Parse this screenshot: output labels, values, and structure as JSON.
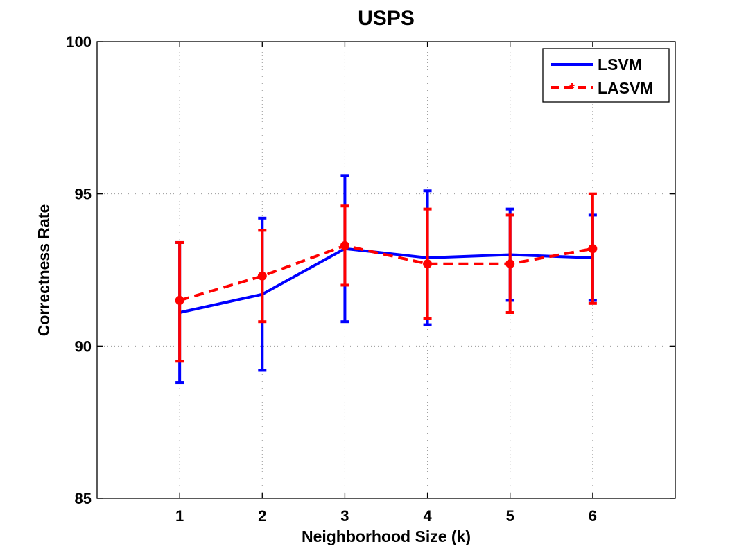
{
  "chart_data": {
    "type": "line",
    "title": "USPS",
    "xlabel": "Neighborhood Size (k)",
    "ylabel": "Correctness Rate",
    "x": [
      1,
      2,
      3,
      4,
      5,
      6
    ],
    "xlim": [
      0,
      7
    ],
    "ylim": [
      85,
      100
    ],
    "xticks": [
      "1",
      "2",
      "3",
      "4",
      "5",
      "6"
    ],
    "yticks": [
      "85",
      "90",
      "95",
      "100"
    ],
    "grid": true,
    "legend_position": "top-right",
    "series": [
      {
        "name": "LSVM",
        "color": "#0000ff",
        "style": "solid",
        "marker": "none",
        "values": [
          91.1,
          91.7,
          93.2,
          92.9,
          93.0,
          92.9
        ],
        "err_low": [
          88.8,
          89.2,
          90.8,
          90.7,
          91.5,
          91.5
        ],
        "err_high": [
          93.4,
          94.2,
          95.6,
          95.1,
          94.5,
          94.3
        ]
      },
      {
        "name": "LASVM",
        "color": "#ff0000",
        "style": "dashed",
        "marker": "circle",
        "values": [
          91.5,
          92.3,
          93.3,
          92.7,
          92.7,
          93.2
        ],
        "err_low": [
          89.5,
          90.8,
          92.0,
          90.9,
          91.1,
          91.4
        ],
        "err_high": [
          93.4,
          93.8,
          94.6,
          94.5,
          94.3,
          95.0
        ]
      }
    ]
  }
}
